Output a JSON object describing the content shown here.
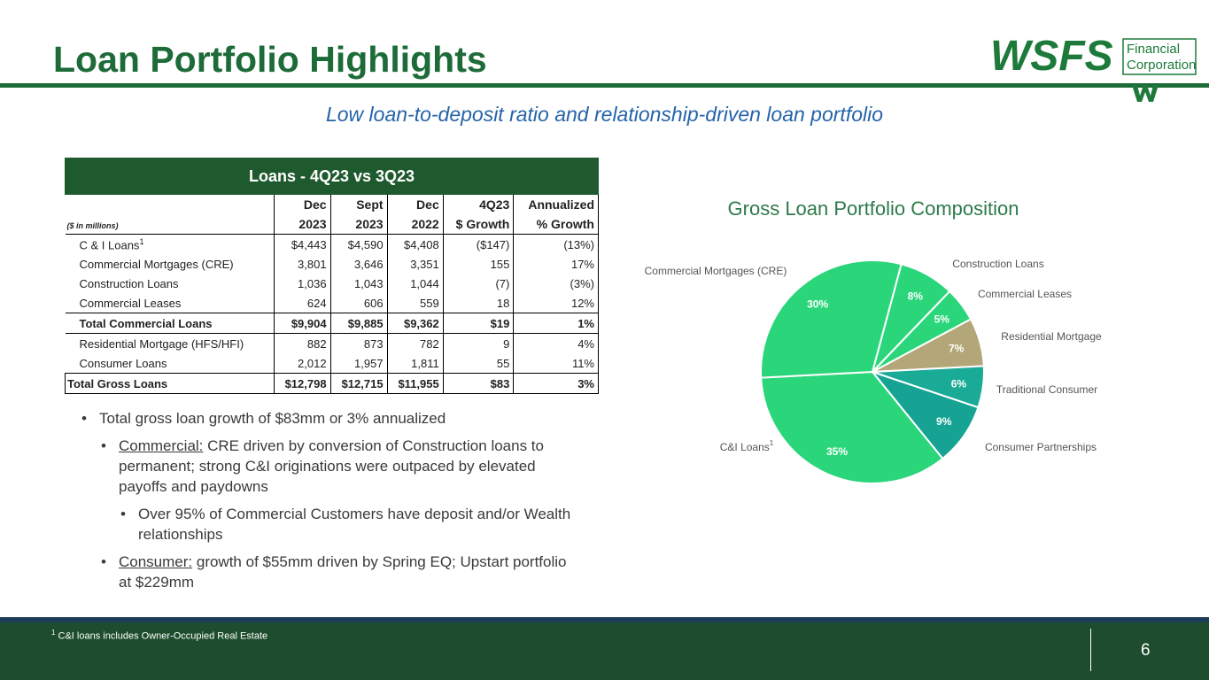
{
  "header": {
    "title": "Loan Portfolio Highlights",
    "subtitle": "Low loan-to-deposit ratio and relationship-driven loan portfolio",
    "logo": {
      "name": "WSFS",
      "line1": "Financial",
      "line2": "Corporation"
    }
  },
  "table": {
    "title": "Loans - 4Q23 vs 3Q23",
    "unit_note": "($ in millions)",
    "columns": [
      [
        "Dec",
        "2023"
      ],
      [
        "Sept",
        "2023"
      ],
      [
        "Dec",
        "2022"
      ],
      [
        "4Q23",
        "$ Growth"
      ],
      [
        "Annualized",
        "% Growth"
      ]
    ],
    "rows": [
      [
        "C & I Loans",
        "$4,443",
        "$4,590",
        "$4,408",
        "($147)",
        "(13%)"
      ],
      [
        "Commercial Mortgages (CRE)",
        "3,801",
        "3,646",
        "3,351",
        "155",
        "17%"
      ],
      [
        "Construction Loans",
        "1,036",
        "1,043",
        "1,044",
        "(7)",
        "(3%)"
      ],
      [
        "Commercial Leases",
        "624",
        "606",
        "559",
        "18",
        "12%"
      ],
      [
        "Total Commercial Loans",
        "$9,904",
        "$9,885",
        "$9,362",
        "$19",
        "1%"
      ],
      [
        "Residential Mortgage (HFS/HFI)",
        "882",
        "873",
        "782",
        "9",
        "4%"
      ],
      [
        "Consumer Loans",
        "2,012",
        "1,957",
        "1,811",
        "55",
        "11%"
      ],
      [
        "Total Gross Loans",
        "$12,798",
        "$12,715",
        "$11,955",
        "$83",
        "3%"
      ]
    ]
  },
  "bullets": [
    {
      "text": "Total gross loan growth of $83mm or 3% annualized",
      "children": [
        {
          "lead": "Commercial:",
          "text": " CRE driven by conversion of Construction loans to permanent; strong C&I originations were outpaced by elevated payoffs and paydowns",
          "children": [
            {
              "text": "Over 95% of Commercial Customers have deposit and/or Wealth relationships"
            }
          ]
        },
        {
          "lead": "Consumer:",
          "text": " growth of $55mm driven by Spring EQ; Upstart portfolio at $229mm"
        }
      ]
    }
  ],
  "chart_data": {
    "type": "pie",
    "title": "Gross Loan Portfolio Composition",
    "categories": [
      "Construction Loans",
      "Commercial Leases",
      "Residential Mortgage",
      "Traditional Consumer",
      "Consumer Partnerships",
      "C&I Loans",
      "Commercial Mortgages (CRE)"
    ],
    "values": [
      8,
      5,
      7,
      6,
      9,
      35,
      30
    ],
    "value_labels": [
      "8%",
      "5%",
      "7%",
      "6%",
      "9%",
      "35%",
      "30%"
    ],
    "colors": [
      "#2bd67b",
      "#2bd67b",
      "#b3a779",
      "#1aab97",
      "#17a393",
      "#2bd67b",
      "#2bd67b"
    ]
  },
  "footer": {
    "footnote": {
      "marker": "1",
      "text": "C&I loans includes Owner-Occupied Real Estate"
    },
    "page": "6"
  }
}
